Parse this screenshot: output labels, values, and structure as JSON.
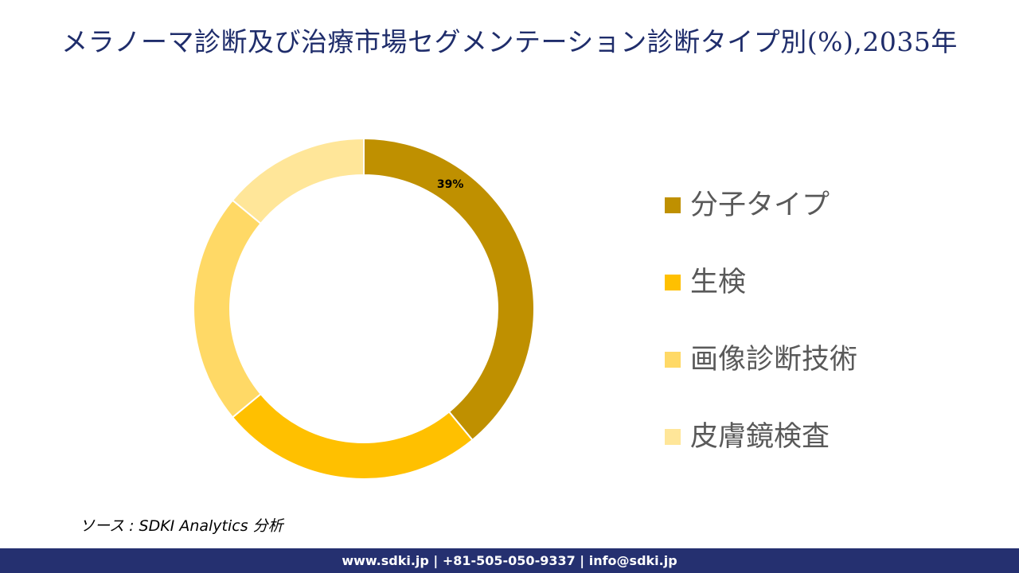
{
  "chart_data": {
    "type": "pie",
    "variant": "donut",
    "title": "メラノーマ診断及び治療市場セグメンテーション診断タイプ別(%),2035年",
    "categories": [
      "分子タイプ",
      "生検",
      "画像診断技術",
      "皮膚鏡検査"
    ],
    "values": [
      39,
      25,
      22,
      14
    ],
    "colors": [
      "#BF9000",
      "#FFC000",
      "#FFD966",
      "#FFE699"
    ],
    "data_labels": [
      "39%",
      "",
      "",
      ""
    ],
    "legend_position": "right"
  },
  "source": "ソース : SDKI Analytics 分析",
  "footer": "www.sdki.jp | +81-505-050-9337 | info@sdki.jp"
}
